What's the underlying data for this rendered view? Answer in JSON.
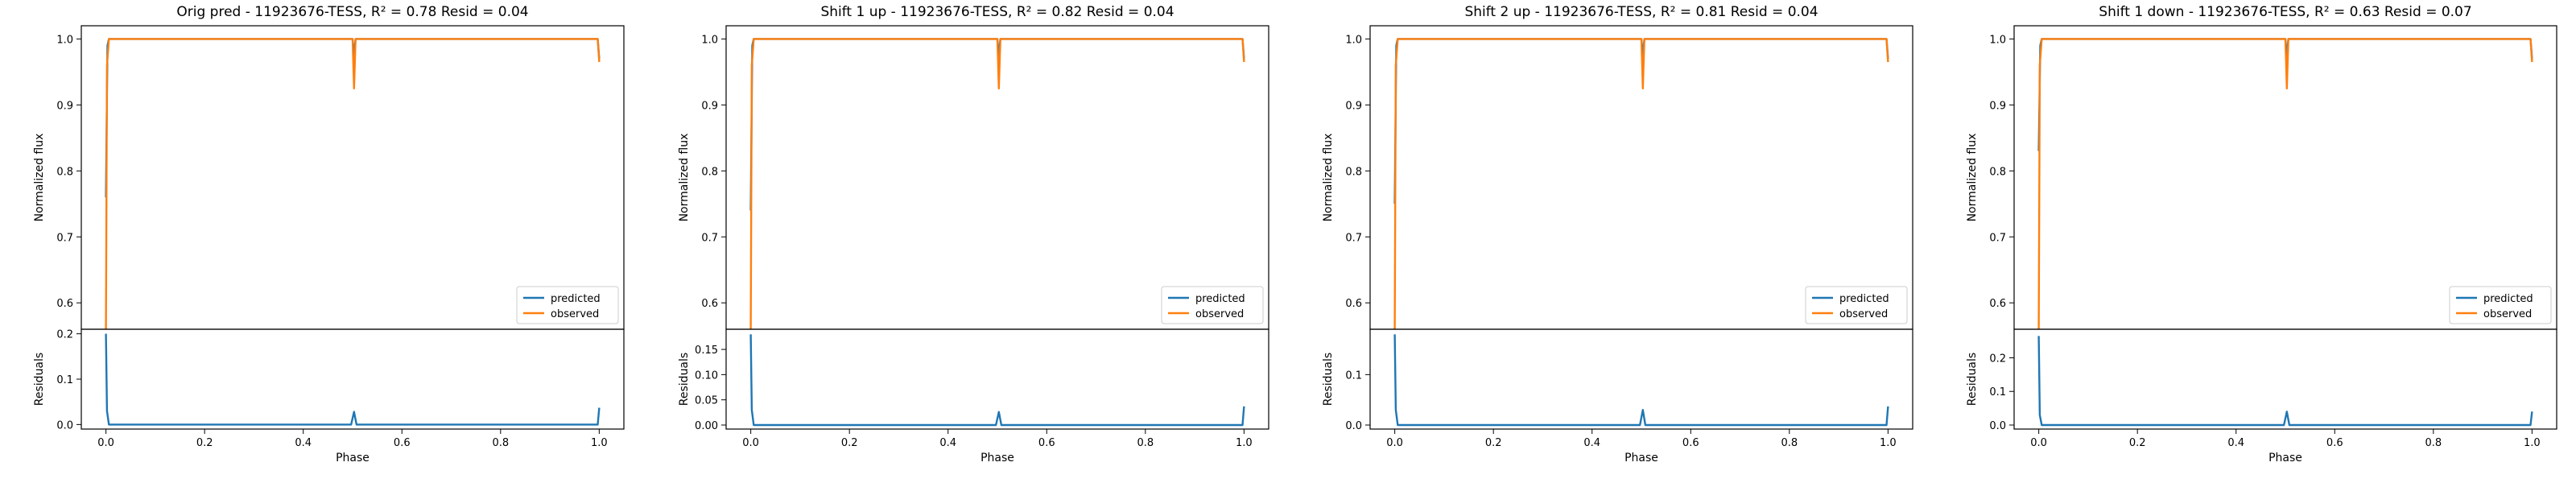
{
  "colors": {
    "predicted": "#1f77b4",
    "observed": "#ff7f0e"
  },
  "legend": {
    "predicted": "predicted",
    "observed": "observed"
  },
  "chart_data": [
    {
      "type": "line",
      "title": "Orig pred - 11923676-TESS, R² = 0.78 Resid = 0.04",
      "xlabel": "Phase",
      "ylabel_top": "Normalized flux",
      "ylabel_bottom": "Residuals",
      "xlim": [
        -0.05,
        1.05
      ],
      "ylim_top": [
        0.56,
        1.02
      ],
      "ylim_bottom": [
        -0.01,
        0.21
      ],
      "xticks": [
        "0.0",
        "0.2",
        "0.4",
        "0.6",
        "0.8",
        "1.0"
      ],
      "yticks_top": [
        "0.6",
        "0.7",
        "0.8",
        "0.9",
        "1.0"
      ],
      "yticks_bottom": [
        "0.0",
        "0.1",
        "0.2"
      ],
      "legend_position": "lower-right",
      "predicted": {
        "x": [
          0.0,
          0.003,
          0.006,
          0.5,
          0.503,
          0.506,
          0.997,
          1.0
        ],
        "y": [
          0.76,
          0.99,
          1.0,
          1.0,
          0.975,
          1.0,
          1.0,
          0.97
        ]
      },
      "observed": {
        "x": [
          0.0,
          0.002,
          0.006,
          0.5,
          0.503,
          0.506,
          0.997,
          1.0
        ],
        "y": [
          0.56,
          0.96,
          1.0,
          1.0,
          0.925,
          1.0,
          1.0,
          0.965
        ]
      },
      "residuals": {
        "x": [
          0.0,
          0.002,
          0.006,
          0.497,
          0.503,
          0.508,
          0.997,
          1.0
        ],
        "y": [
          0.2,
          0.03,
          0.0,
          0.0,
          0.028,
          0.0,
          0.0,
          0.037
        ]
      }
    },
    {
      "type": "line",
      "title": "Shift 1 up - 11923676-TESS, R² = 0.82 Resid = 0.04",
      "xlabel": "Phase",
      "ylabel_top": "Normalized flux",
      "ylabel_bottom": "Residuals",
      "xlim": [
        -0.05,
        1.05
      ],
      "ylim_top": [
        0.56,
        1.02
      ],
      "ylim_bottom": [
        -0.008,
        0.19
      ],
      "xticks": [
        "0.0",
        "0.2",
        "0.4",
        "0.6",
        "0.8",
        "1.0"
      ],
      "yticks_top": [
        "0.6",
        "0.7",
        "0.8",
        "0.9",
        "1.0"
      ],
      "yticks_bottom": [
        "0.00",
        "0.05",
        "0.10",
        "0.15"
      ],
      "legend_position": "lower-right",
      "predicted": {
        "x": [
          0.0,
          0.003,
          0.006,
          0.5,
          0.503,
          0.506,
          0.997,
          1.0
        ],
        "y": [
          0.74,
          0.99,
          1.0,
          1.0,
          0.975,
          1.0,
          1.0,
          0.97
        ]
      },
      "observed": {
        "x": [
          0.0,
          0.002,
          0.006,
          0.5,
          0.503,
          0.506,
          0.997,
          1.0
        ],
        "y": [
          0.56,
          0.96,
          1.0,
          1.0,
          0.925,
          1.0,
          1.0,
          0.965
        ]
      },
      "residuals": {
        "x": [
          0.0,
          0.002,
          0.006,
          0.497,
          0.503,
          0.508,
          0.997,
          1.0
        ],
        "y": [
          0.18,
          0.03,
          0.0,
          0.0,
          0.026,
          0.0,
          0.0,
          0.037
        ]
      }
    },
    {
      "type": "line",
      "title": "Shift 2 up - 11923676-TESS, R² = 0.81 Resid = 0.04",
      "xlabel": "Phase",
      "ylabel_top": "Normalized flux",
      "ylabel_bottom": "Residuals",
      "xlim": [
        -0.05,
        1.05
      ],
      "ylim_top": [
        0.56,
        1.02
      ],
      "ylim_bottom": [
        -0.008,
        0.19
      ],
      "xticks": [
        "0.0",
        "0.2",
        "0.4",
        "0.6",
        "0.8",
        "1.0"
      ],
      "yticks_top": [
        "0.6",
        "0.7",
        "0.8",
        "0.9",
        "1.0"
      ],
      "yticks_bottom": [
        "0.0",
        "0.1"
      ],
      "legend_position": "lower-right",
      "predicted": {
        "x": [
          0.0,
          0.003,
          0.006,
          0.5,
          0.503,
          0.506,
          0.997,
          1.0
        ],
        "y": [
          0.75,
          0.99,
          1.0,
          1.0,
          0.975,
          1.0,
          1.0,
          0.97
        ]
      },
      "observed": {
        "x": [
          0.0,
          0.002,
          0.006,
          0.5,
          0.503,
          0.506,
          0.997,
          1.0
        ],
        "y": [
          0.56,
          0.96,
          1.0,
          1.0,
          0.925,
          1.0,
          1.0,
          0.965
        ]
      },
      "residuals": {
        "x": [
          0.0,
          0.002,
          0.006,
          0.497,
          0.503,
          0.508,
          0.997,
          1.0
        ],
        "y": [
          0.18,
          0.03,
          0.0,
          0.0,
          0.03,
          0.0,
          0.0,
          0.037
        ]
      }
    },
    {
      "type": "line",
      "title": "Shift 1 down - 11923676-TESS, R² = 0.63 Resid = 0.07",
      "xlabel": "Phase",
      "ylabel_top": "Normalized flux",
      "ylabel_bottom": "Residuals",
      "xlim": [
        -0.05,
        1.05
      ],
      "ylim_top": [
        0.56,
        1.02
      ],
      "ylim_bottom": [
        -0.012,
        0.285
      ],
      "xticks": [
        "0.0",
        "0.2",
        "0.4",
        "0.6",
        "0.8",
        "1.0"
      ],
      "yticks_top": [
        "0.6",
        "0.7",
        "0.8",
        "0.9",
        "1.0"
      ],
      "yticks_bottom": [
        "0.0",
        "0.1",
        "0.2"
      ],
      "legend_position": "lower-right",
      "predicted": {
        "x": [
          0.0,
          0.003,
          0.006,
          0.5,
          0.503,
          0.506,
          0.997,
          1.0
        ],
        "y": [
          0.83,
          0.99,
          1.0,
          1.0,
          0.975,
          1.0,
          1.0,
          0.97
        ]
      },
      "observed": {
        "x": [
          0.0,
          0.002,
          0.006,
          0.5,
          0.503,
          0.506,
          0.997,
          1.0
        ],
        "y": [
          0.56,
          0.96,
          1.0,
          1.0,
          0.925,
          1.0,
          1.0,
          0.965
        ]
      },
      "residuals": {
        "x": [
          0.0,
          0.002,
          0.006,
          0.497,
          0.503,
          0.508,
          0.997,
          1.0
        ],
        "y": [
          0.265,
          0.03,
          0.0,
          0.0,
          0.04,
          0.0,
          0.0,
          0.04
        ]
      }
    }
  ]
}
